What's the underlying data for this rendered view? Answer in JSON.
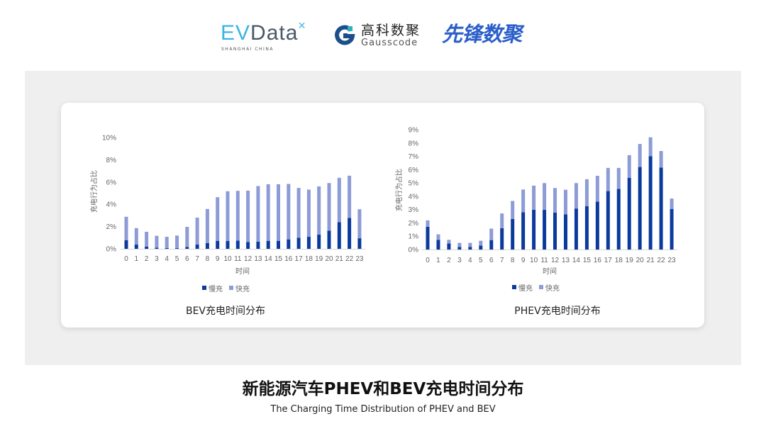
{
  "logos": {
    "evdata": {
      "text_ev": "EV",
      "text_data": "Data",
      "mark": "×",
      "subtitle": "SHANGHAI CHINA"
    },
    "gausscode": {
      "cn": "高科数聚",
      "en": "Gausscode"
    },
    "xianfeng": {
      "cn": "先锋数聚"
    }
  },
  "colors": {
    "slow": "#0b3a9e",
    "fast": "#8d9bd6",
    "panel": "#efefef"
  },
  "title": "新能源汽车PHEV和BEV充电时间分布",
  "subtitle": "The Charging Time Distribution of PHEV and BEV",
  "chart_data": [
    {
      "type": "bar",
      "stacked": true,
      "title": "BEV充电时间分布",
      "xlabel": "时间",
      "ylabel": "充电行为占比",
      "ylim": [
        0,
        10
      ],
      "yticks": [
        "0%",
        "2%",
        "4%",
        "6%",
        "8%",
        "10%"
      ],
      "ytick_values": [
        0,
        2,
        4,
        6,
        8,
        10
      ],
      "legend": "bottom",
      "categories": [
        "0",
        "1",
        "2",
        "3",
        "4",
        "5",
        "6",
        "7",
        "8",
        "9",
        "10",
        "11",
        "12",
        "13",
        "14",
        "15",
        "16",
        "17",
        "18",
        "19",
        "20",
        "21",
        "22",
        "23"
      ],
      "series": [
        {
          "name": "慢充",
          "values": [
            0.78,
            0.38,
            0.19,
            0.1,
            0.08,
            0.06,
            0.17,
            0.38,
            0.51,
            0.72,
            0.7,
            0.74,
            0.61,
            0.64,
            0.72,
            0.72,
            0.85,
            1.0,
            1.08,
            1.29,
            1.63,
            2.39,
            2.78,
            0.95
          ]
        },
        {
          "name": "快充",
          "values": [
            2.1,
            1.48,
            1.34,
            1.07,
            1.0,
            1.13,
            1.8,
            2.42,
            3.07,
            3.92,
            4.47,
            4.47,
            4.62,
            5.0,
            5.08,
            5.08,
            4.98,
            4.47,
            4.24,
            4.32,
            4.28,
            3.99,
            3.79,
            2.61
          ]
        }
      ]
    },
    {
      "type": "bar",
      "stacked": true,
      "title": "PHEV充电时间分布",
      "xlabel": "时间",
      "ylabel": "充电行为占比",
      "ylim": [
        0,
        9
      ],
      "yticks": [
        "0%",
        "1%",
        "2%",
        "3%",
        "4%",
        "5%",
        "6%",
        "7%",
        "8%",
        "9%"
      ],
      "ytick_values": [
        0,
        1,
        2,
        3,
        4,
        5,
        6,
        7,
        8,
        9
      ],
      "legend": "bottom",
      "categories": [
        "0",
        "1",
        "2",
        "3",
        "4",
        "5",
        "6",
        "7",
        "8",
        "9",
        "10",
        "11",
        "12",
        "13",
        "14",
        "15",
        "16",
        "17",
        "18",
        "19",
        "20",
        "21",
        "22",
        "23"
      ],
      "series": [
        {
          "name": "慢充",
          "values": [
            1.71,
            0.73,
            0.45,
            0.2,
            0.2,
            0.29,
            0.71,
            1.6,
            2.3,
            2.8,
            2.99,
            2.98,
            2.78,
            2.64,
            3.08,
            3.26,
            3.6,
            4.39,
            4.55,
            5.38,
            6.2,
            7.02,
            6.15,
            3.05
          ]
        },
        {
          "name": "快充",
          "values": [
            0.48,
            0.41,
            0.28,
            0.3,
            0.3,
            0.37,
            0.86,
            1.11,
            1.35,
            1.71,
            1.81,
            2.01,
            1.84,
            1.85,
            1.91,
            2.02,
            1.94,
            1.74,
            1.58,
            1.71,
            1.73,
            1.41,
            1.25,
            0.78
          ]
        }
      ]
    }
  ]
}
